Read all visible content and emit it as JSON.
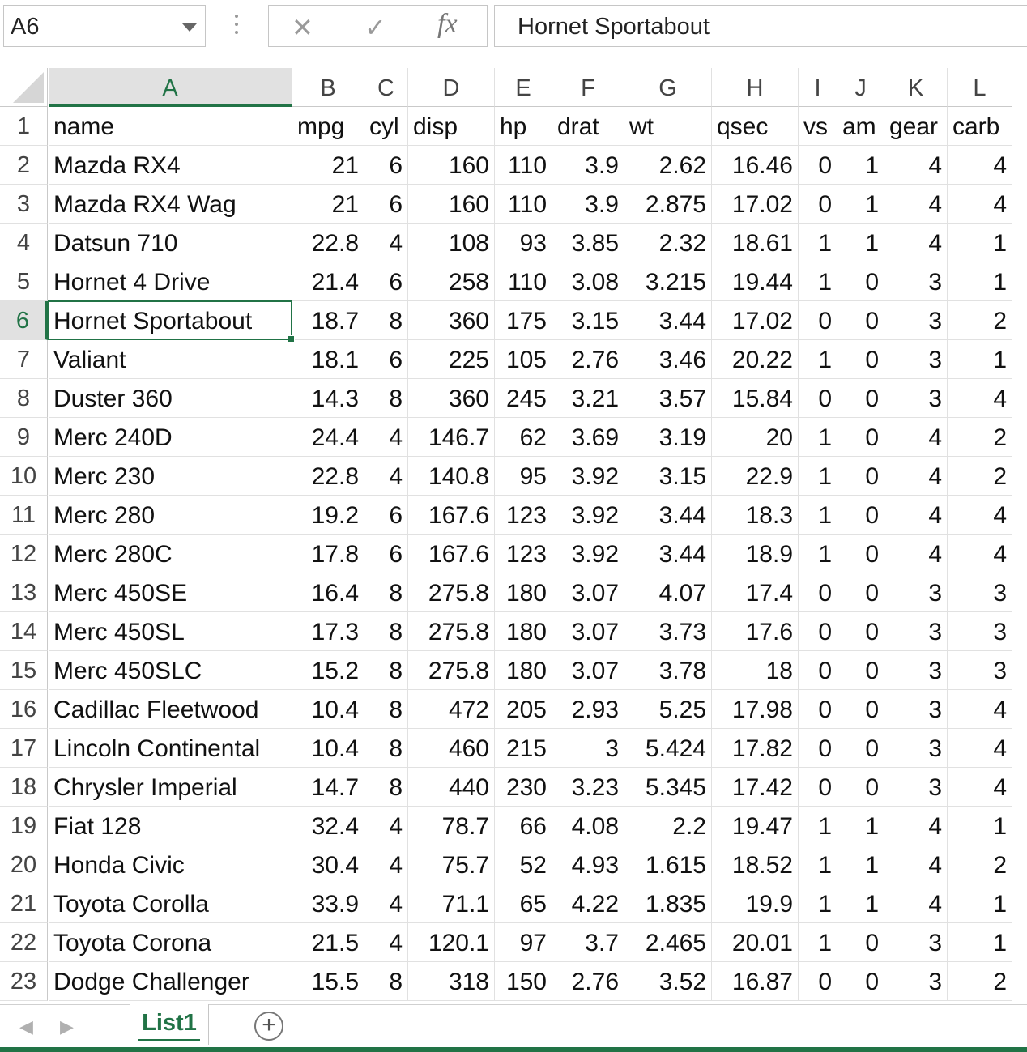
{
  "formula_bar": {
    "name_box": "A6",
    "cancel_icon": "✕",
    "enter_icon": "✓",
    "function_label": "fx",
    "formula_value": "Hornet Sportabout"
  },
  "columns": [
    "A",
    "B",
    "C",
    "D",
    "E",
    "F",
    "G",
    "H",
    "I",
    "J",
    "K",
    "L"
  ],
  "selected": {
    "row": 6,
    "column": "A"
  },
  "rows": [
    [
      "name",
      "mpg",
      "cyl",
      "disp",
      "hp",
      "drat",
      "wt",
      "qsec",
      "vs",
      "am",
      "gear",
      "carb"
    ],
    [
      "Mazda RX4",
      "21",
      "6",
      "160",
      "110",
      "3.9",
      "2.62",
      "16.46",
      "0",
      "1",
      "4",
      "4"
    ],
    [
      "Mazda RX4 Wag",
      "21",
      "6",
      "160",
      "110",
      "3.9",
      "2.875",
      "17.02",
      "0",
      "1",
      "4",
      "4"
    ],
    [
      "Datsun 710",
      "22.8",
      "4",
      "108",
      "93",
      "3.85",
      "2.32",
      "18.61",
      "1",
      "1",
      "4",
      "1"
    ],
    [
      "Hornet 4 Drive",
      "21.4",
      "6",
      "258",
      "110",
      "3.08",
      "3.215",
      "19.44",
      "1",
      "0",
      "3",
      "1"
    ],
    [
      "Hornet Sportabout",
      "18.7",
      "8",
      "360",
      "175",
      "3.15",
      "3.44",
      "17.02",
      "0",
      "0",
      "3",
      "2"
    ],
    [
      "Valiant",
      "18.1",
      "6",
      "225",
      "105",
      "2.76",
      "3.46",
      "20.22",
      "1",
      "0",
      "3",
      "1"
    ],
    [
      "Duster 360",
      "14.3",
      "8",
      "360",
      "245",
      "3.21",
      "3.57",
      "15.84",
      "0",
      "0",
      "3",
      "4"
    ],
    [
      "Merc 240D",
      "24.4",
      "4",
      "146.7",
      "62",
      "3.69",
      "3.19",
      "20",
      "1",
      "0",
      "4",
      "2"
    ],
    [
      "Merc 230",
      "22.8",
      "4",
      "140.8",
      "95",
      "3.92",
      "3.15",
      "22.9",
      "1",
      "0",
      "4",
      "2"
    ],
    [
      "Merc 280",
      "19.2",
      "6",
      "167.6",
      "123",
      "3.92",
      "3.44",
      "18.3",
      "1",
      "0",
      "4",
      "4"
    ],
    [
      "Merc 280C",
      "17.8",
      "6",
      "167.6",
      "123",
      "3.92",
      "3.44",
      "18.9",
      "1",
      "0",
      "4",
      "4"
    ],
    [
      "Merc 450SE",
      "16.4",
      "8",
      "275.8",
      "180",
      "3.07",
      "4.07",
      "17.4",
      "0",
      "0",
      "3",
      "3"
    ],
    [
      "Merc 450SL",
      "17.3",
      "8",
      "275.8",
      "180",
      "3.07",
      "3.73",
      "17.6",
      "0",
      "0",
      "3",
      "3"
    ],
    [
      "Merc 450SLC",
      "15.2",
      "8",
      "275.8",
      "180",
      "3.07",
      "3.78",
      "18",
      "0",
      "0",
      "3",
      "3"
    ],
    [
      "Cadillac Fleetwood",
      "10.4",
      "8",
      "472",
      "205",
      "2.93",
      "5.25",
      "17.98",
      "0",
      "0",
      "3",
      "4"
    ],
    [
      "Lincoln Continental",
      "10.4",
      "8",
      "460",
      "215",
      "3",
      "5.424",
      "17.82",
      "0",
      "0",
      "3",
      "4"
    ],
    [
      "Chrysler Imperial",
      "14.7",
      "8",
      "440",
      "230",
      "3.23",
      "5.345",
      "17.42",
      "0",
      "0",
      "3",
      "4"
    ],
    [
      "Fiat 128",
      "32.4",
      "4",
      "78.7",
      "66",
      "4.08",
      "2.2",
      "19.47",
      "1",
      "1",
      "4",
      "1"
    ],
    [
      "Honda Civic",
      "30.4",
      "4",
      "75.7",
      "52",
      "4.93",
      "1.615",
      "18.52",
      "1",
      "1",
      "4",
      "2"
    ],
    [
      "Toyota Corolla",
      "33.9",
      "4",
      "71.1",
      "65",
      "4.22",
      "1.835",
      "19.9",
      "1",
      "1",
      "4",
      "1"
    ],
    [
      "Toyota Corona",
      "21.5",
      "4",
      "120.1",
      "97",
      "3.7",
      "2.465",
      "20.01",
      "1",
      "0",
      "3",
      "1"
    ],
    [
      "Dodge Challenger",
      "15.5",
      "8",
      "318",
      "150",
      "2.76",
      "3.52",
      "16.87",
      "0",
      "0",
      "3",
      "2"
    ]
  ],
  "sheet_tabs": {
    "prev_icon": "◀",
    "next_icon": "▶",
    "active": "List1",
    "add_icon": "+"
  },
  "accent_color": "#217346"
}
